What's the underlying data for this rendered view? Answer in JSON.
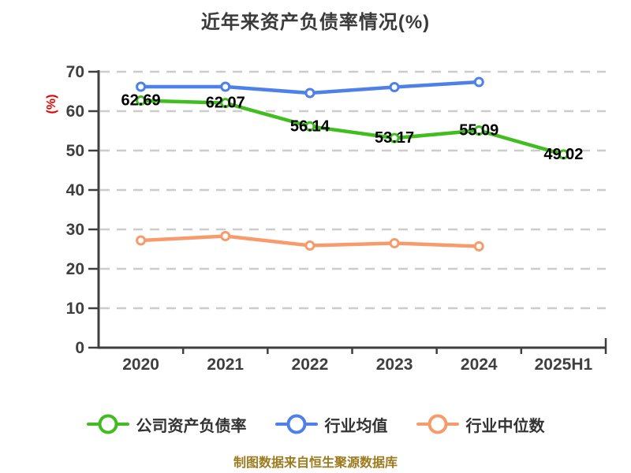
{
  "title": "近年来资产负债率情况(%)",
  "y_axis_name": "(%)",
  "footer": "制图数据来自恒生聚源数据库",
  "colors": {
    "company": "#41bd1f",
    "industry_avg": "#4e80e9",
    "industry_median": "#f89b6c",
    "axis": "#3f3f3f",
    "grid": "#cccccc",
    "data_label": "#000000",
    "title_text": "#3a3a3a",
    "footer_text": "#9d7a1e",
    "y_name_text": "#e60000"
  },
  "chart_data": {
    "type": "line",
    "title": "近年来资产负债率情况(%)",
    "categories": [
      "2020",
      "2021",
      "2022",
      "2023",
      "2024",
      "2025H1"
    ],
    "series": [
      {
        "name": "公司资产负债率",
        "color_key": "company",
        "values": [
          62.69,
          62.07,
          56.14,
          53.17,
          55.09,
          49.02
        ],
        "show_labels": true
      },
      {
        "name": "行业均值",
        "color_key": "industry_avg",
        "values": [
          66.2,
          66.2,
          64.6,
          66.1,
          67.4,
          null
        ],
        "show_labels": false
      },
      {
        "name": "行业中位数",
        "color_key": "industry_median",
        "values": [
          27.2,
          28.3,
          25.9,
          26.5,
          25.7,
          null
        ],
        "show_labels": false
      }
    ],
    "ylabel": "(%)",
    "xlabel": "",
    "ylim": [
      0,
      70
    ],
    "yticks": [
      0,
      10,
      20,
      30,
      40,
      50,
      60,
      70
    ],
    "grid": "dashed-horizontal",
    "legend_position": "bottom"
  },
  "legend": {
    "items": [
      {
        "label": "公司资产负债率",
        "color_key": "company"
      },
      {
        "label": "行业均值",
        "color_key": "industry_avg"
      },
      {
        "label": "行业中位数",
        "color_key": "industry_median"
      }
    ]
  }
}
